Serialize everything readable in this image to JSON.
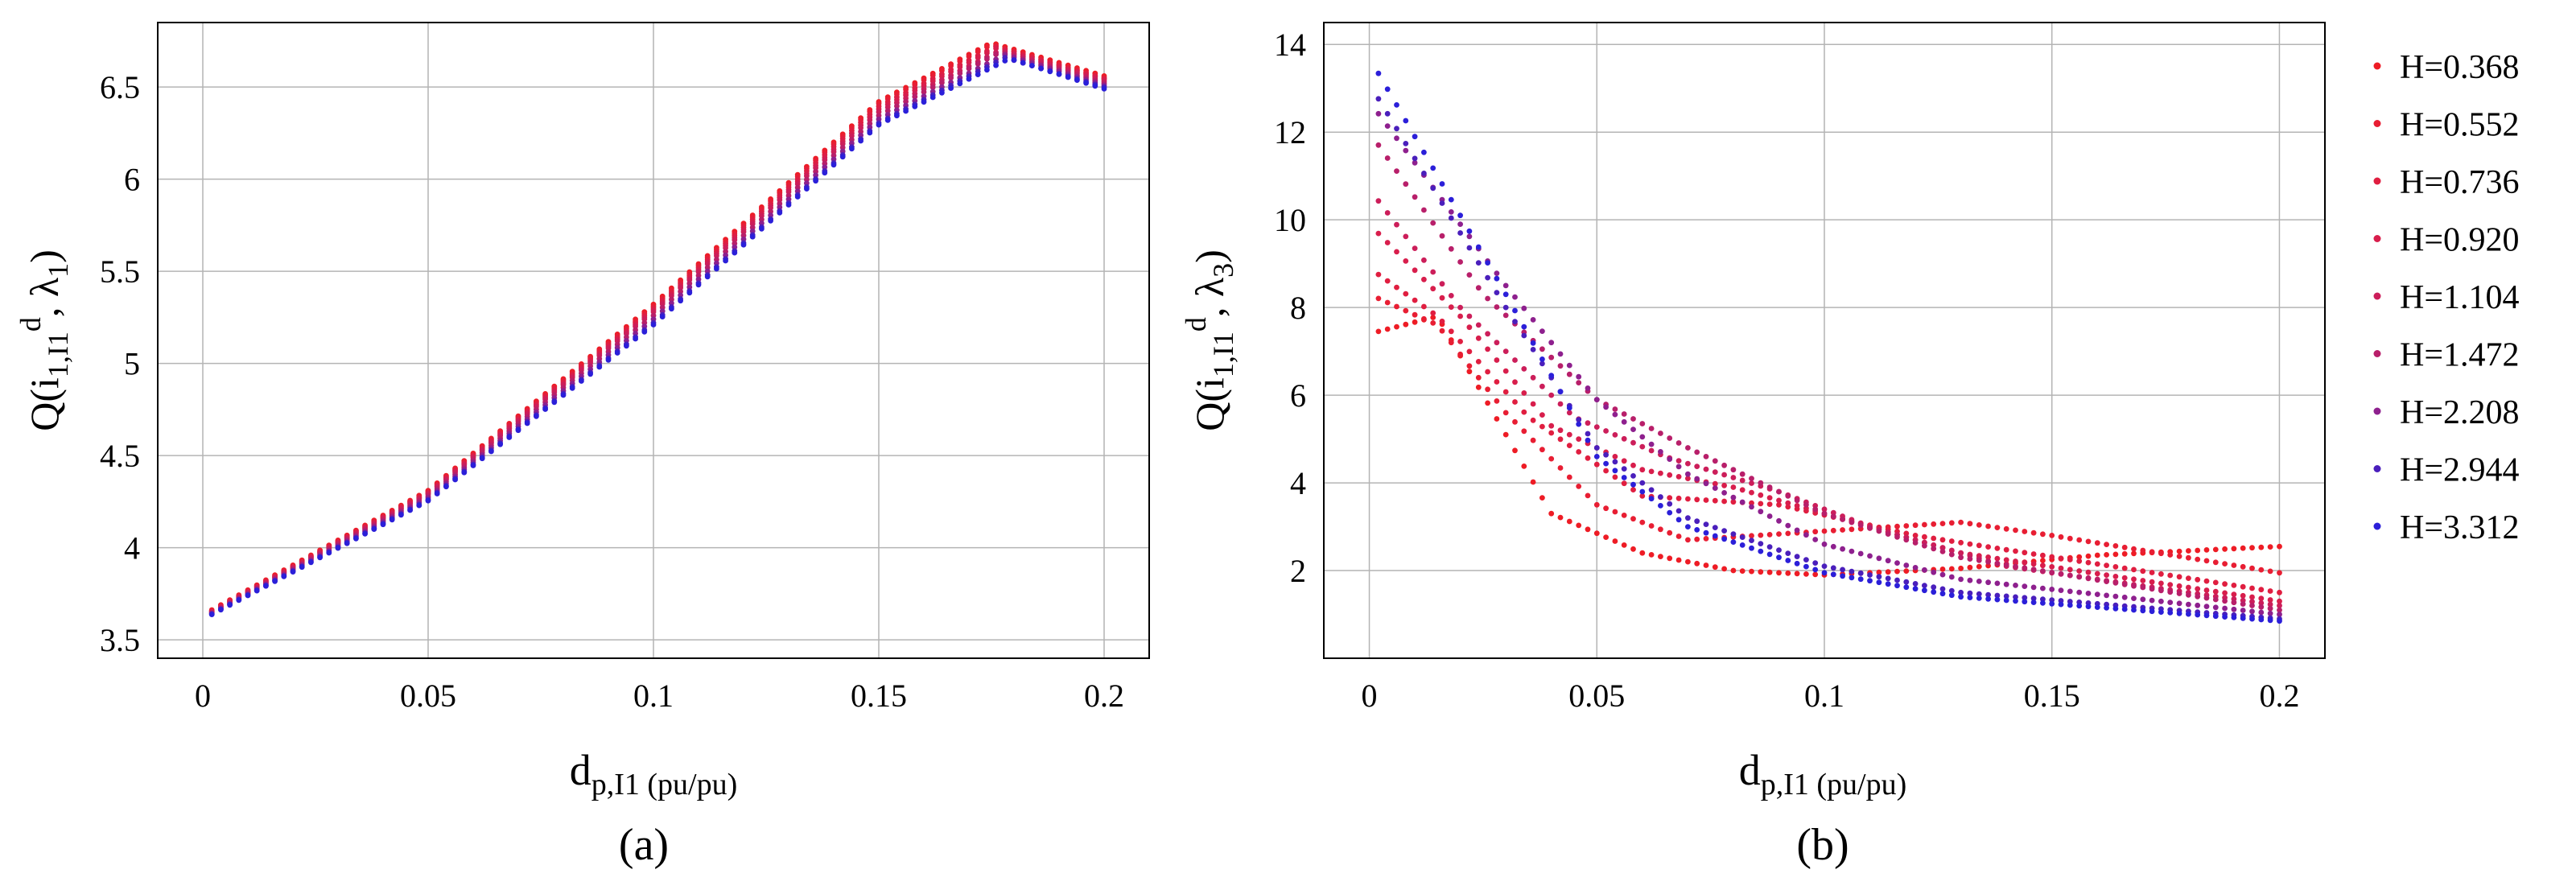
{
  "chart_data": [
    {
      "type": "scatter",
      "panel_label": "(a)",
      "ylabel": {
        "main": "Q(i",
        "sub1": "1,I1",
        "sup": "d",
        "mid": ", λ",
        "sub2": "1",
        "end": ")"
      },
      "xlabel": {
        "main": "d",
        "sub": "p,I1",
        "unit": " (pu/pu)"
      },
      "xlim": [
        -0.01,
        0.21
      ],
      "ylim": [
        3.4,
        6.85
      ],
      "xticks": [
        0,
        0.05,
        0.1,
        0.15,
        0.2
      ],
      "xtick_labels": [
        "0",
        "0.05",
        "0.1",
        "0.15",
        "0.2"
      ],
      "yticks": [
        3.5,
        4,
        4.5,
        5,
        5.5,
        6,
        6.5
      ],
      "ytick_labels": [
        "3.5",
        "4",
        "4.5",
        "5",
        "5.5",
        "6",
        "6.5"
      ],
      "grid": true,
      "x_range": [
        0.002,
        0.2
      ],
      "points_per_series": 100,
      "series": [
        {
          "name": "H=0.368",
          "color": "#ee1c25",
          "points": [
            [
              0,
              3.635
            ],
            [
              0.05,
              4.31
            ],
            [
              0.1,
              5.32
            ],
            [
              0.15,
              6.42
            ],
            [
              0.175,
              6.74
            ],
            [
              0.2,
              6.56
            ]
          ]
        },
        {
          "name": "H=0.552",
          "color": "#e81e33",
          "points": [
            [
              0,
              3.63
            ],
            [
              0.05,
              4.305
            ],
            [
              0.1,
              5.31
            ],
            [
              0.15,
              6.41
            ],
            [
              0.175,
              6.73
            ],
            [
              0.2,
              6.55
            ]
          ]
        },
        {
          "name": "H=0.736",
          "color": "#e01e40",
          "points": [
            [
              0,
              3.628
            ],
            [
              0.05,
              4.3
            ],
            [
              0.1,
              5.3
            ],
            [
              0.15,
              6.395
            ],
            [
              0.176,
              6.72
            ],
            [
              0.2,
              6.545
            ]
          ]
        },
        {
          "name": "H=0.920",
          "color": "#d81e4c",
          "points": [
            [
              0,
              3.625
            ],
            [
              0.05,
              4.295
            ],
            [
              0.1,
              5.29
            ],
            [
              0.15,
              6.38
            ],
            [
              0.176,
              6.71
            ],
            [
              0.2,
              6.54
            ]
          ]
        },
        {
          "name": "H=1.104",
          "color": "#cc1e5a",
          "points": [
            [
              0,
              3.622
            ],
            [
              0.05,
              4.29
            ],
            [
              0.1,
              5.28
            ],
            [
              0.15,
              6.365
            ],
            [
              0.177,
              6.7
            ],
            [
              0.2,
              6.53
            ]
          ]
        },
        {
          "name": "H=1.472",
          "color": "#b81f6a",
          "points": [
            [
              0,
              3.62
            ],
            [
              0.05,
              4.28
            ],
            [
              0.1,
              5.26
            ],
            [
              0.15,
              6.345
            ],
            [
              0.177,
              6.69
            ],
            [
              0.2,
              6.52
            ]
          ]
        },
        {
          "name": "H=2.208",
          "color": "#8e208e",
          "points": [
            [
              0,
              3.617
            ],
            [
              0.05,
              4.27
            ],
            [
              0.1,
              5.24
            ],
            [
              0.15,
              6.325
            ],
            [
              0.178,
              6.675
            ],
            [
              0.2,
              6.51
            ]
          ]
        },
        {
          "name": "H=2.944",
          "color": "#4a1fbc",
          "points": [
            [
              0,
              3.614
            ],
            [
              0.05,
              4.26
            ],
            [
              0.1,
              5.22
            ],
            [
              0.15,
              6.305
            ],
            [
              0.178,
              6.66
            ],
            [
              0.2,
              6.5
            ]
          ]
        },
        {
          "name": "H=3.312",
          "color": "#2b1fd9",
          "points": [
            [
              0,
              3.612
            ],
            [
              0.05,
              4.255
            ],
            [
              0.1,
              5.21
            ],
            [
              0.15,
              6.295
            ],
            [
              0.179,
              6.655
            ],
            [
              0.2,
              6.49
            ]
          ]
        }
      ]
    },
    {
      "type": "scatter",
      "panel_label": "(b)",
      "ylabel": {
        "main": "Q(i",
        "sub1": "1,I1",
        "sup": "d",
        "mid": ", λ",
        "sub2": "3",
        "end": ")"
      },
      "xlabel": {
        "main": "d",
        "sub": "p,I1",
        "unit": " (pu/pu)"
      },
      "xlim": [
        -0.01,
        0.21
      ],
      "ylim": [
        0,
        14.5
      ],
      "xticks": [
        0,
        0.05,
        0.1,
        0.15,
        0.2
      ],
      "xtick_labels": [
        "0",
        "0.05",
        "0.1",
        "0.15",
        "0.2"
      ],
      "yticks": [
        2,
        4,
        6,
        8,
        10,
        12,
        14
      ],
      "ytick_labels": [
        "2",
        "4",
        "6",
        "8",
        "10",
        "12",
        "14"
      ],
      "grid": true,
      "x_range": [
        0.002,
        0.2
      ],
      "points_per_series": 100,
      "legend_position": "right",
      "series": [
        {
          "name": "H=0.368",
          "color": "#ee1c25",
          "points": [
            [
              0,
              7.4
            ],
            [
              0.015,
              7.8
            ],
            [
              0.025,
              6.0
            ],
            [
              0.04,
              3.3
            ],
            [
              0.06,
              2.4
            ],
            [
              0.08,
              2.0
            ],
            [
              0.1,
              1.9
            ],
            [
              0.13,
              2.05
            ],
            [
              0.16,
              2.35
            ],
            [
              0.2,
              2.55
            ]
          ]
        },
        {
          "name": "H=0.552",
          "color": "#e81e33",
          "points": [
            [
              0,
              8.3
            ],
            [
              0.015,
              7.6
            ],
            [
              0.03,
              5.6
            ],
            [
              0.05,
              3.5
            ],
            [
              0.07,
              2.7
            ],
            [
              0.1,
              2.9
            ],
            [
              0.13,
              3.1
            ],
            [
              0.15,
              2.8
            ],
            [
              0.2,
              1.95
            ]
          ]
        },
        {
          "name": "H=0.736",
          "color": "#e01e40",
          "points": [
            [
              0,
              8.9
            ],
            [
              0.015,
              7.8
            ],
            [
              0.035,
              5.5
            ],
            [
              0.06,
              3.7
            ],
            [
              0.09,
              3.5
            ],
            [
              0.12,
              2.8
            ],
            [
              0.2,
              1.5
            ]
          ]
        },
        {
          "name": "H=0.920",
          "color": "#d81e4c",
          "points": [
            [
              0,
              9.9
            ],
            [
              0.02,
              7.8
            ],
            [
              0.04,
              5.3
            ],
            [
              0.06,
              4.3
            ],
            [
              0.08,
              3.9
            ],
            [
              0.1,
              3.3
            ],
            [
              0.13,
              2.4
            ],
            [
              0.2,
              1.3
            ]
          ]
        },
        {
          "name": "H=1.104",
          "color": "#cc1e5a",
          "points": [
            [
              0,
              10.7
            ],
            [
              0.02,
              8.0
            ],
            [
              0.045,
              5.5
            ],
            [
              0.065,
              4.6
            ],
            [
              0.09,
              3.8
            ],
            [
              0.11,
              3.0
            ],
            [
              0.14,
              2.1
            ],
            [
              0.2,
              1.2
            ]
          ]
        },
        {
          "name": "H=1.472",
          "color": "#b81f6a",
          "points": [
            [
              0,
              12.0
            ],
            [
              0.025,
              8.3
            ],
            [
              0.05,
              5.9
            ],
            [
              0.07,
              4.8
            ],
            [
              0.1,
              3.3
            ],
            [
              0.13,
              2.3
            ],
            [
              0.2,
              1.1
            ]
          ]
        },
        {
          "name": "H=2.208",
          "color": "#8e208e",
          "points": [
            [
              0,
              12.7
            ],
            [
              0.03,
              8.5
            ],
            [
              0.05,
              5.9
            ],
            [
              0.07,
              4.2
            ],
            [
              0.1,
              2.6
            ],
            [
              0.13,
              1.8
            ],
            [
              0.2,
              1.0
            ]
          ]
        },
        {
          "name": "H=2.944",
          "color": "#4a1fbc",
          "points": [
            [
              0,
              13.1
            ],
            [
              0.03,
              8.0
            ],
            [
              0.05,
              4.8
            ],
            [
              0.07,
              3.2
            ],
            [
              0.1,
              2.1
            ],
            [
              0.13,
              1.5
            ],
            [
              0.2,
              0.9
            ]
          ]
        },
        {
          "name": "H=3.312",
          "color": "#2b1fd9",
          "points": [
            [
              0,
              13.7
            ],
            [
              0.03,
              8.3
            ],
            [
              0.05,
              4.6
            ],
            [
              0.07,
              3.0
            ],
            [
              0.1,
              1.95
            ],
            [
              0.13,
              1.4
            ],
            [
              0.2,
              0.85
            ]
          ]
        }
      ]
    }
  ]
}
